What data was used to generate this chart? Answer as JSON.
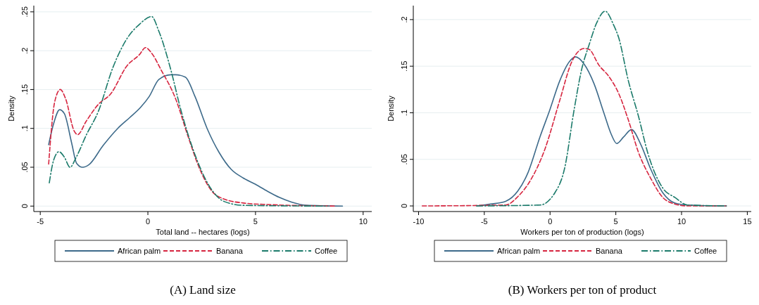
{
  "chart_data": [
    {
      "type": "line",
      "title": "(A) Land size",
      "xlabel": "Total land -- hectares (logs)",
      "ylabel": "Density",
      "xlim": [
        -5.3,
        10.4
      ],
      "ylim": [
        -0.007,
        0.258
      ],
      "xticks": [
        -5,
        0,
        5,
        10
      ],
      "yticks": [
        {
          "value": 0,
          "label": "0"
        },
        {
          "value": 0.05,
          "label": ".05"
        },
        {
          "value": 0.1,
          "label": ".1"
        },
        {
          "value": 0.15,
          "label": ".15"
        },
        {
          "value": 0.2,
          "label": ".2"
        },
        {
          "value": 0.25,
          "label": ".25"
        }
      ],
      "grid": "y",
      "legend": "bottom",
      "series": [
        {
          "name": "African palm",
          "color": "#3d6a8a",
          "line_style": "solid",
          "x": [
            -4.61,
            -4.38,
            -4.1,
            -3.88,
            -3.54,
            -3.31,
            -3.03,
            -2.75,
            -2.08,
            -1.4,
            -0.84,
            -0.34,
            0.06,
            0.51,
            1.07,
            1.29,
            1.74,
            2.19,
            2.75,
            3.31,
            3.88,
            4.44,
            5.0,
            5.56,
            6.12,
            6.69,
            7.36,
            9.04
          ],
          "values": [
            0.079,
            0.106,
            0.124,
            0.119,
            0.081,
            0.055,
            0.05,
            0.053,
            0.078,
            0.1,
            0.114,
            0.127,
            0.141,
            0.163,
            0.169,
            0.169,
            0.166,
            0.141,
            0.1,
            0.069,
            0.047,
            0.036,
            0.028,
            0.019,
            0.011,
            0.005,
            0.001,
            0
          ]
        },
        {
          "name": "Banana",
          "color": "#d6253f",
          "line_style": "dashed",
          "x": [
            -4.61,
            -4.33,
            -4.07,
            -3.82,
            -3.43,
            -3.26,
            -2.87,
            -2.3,
            -1.74,
            -0.96,
            -0.39,
            -0.11,
            0.17,
            0.62,
            1.29,
            1.85,
            2.42,
            2.98,
            3.54,
            4.44,
            5.56,
            8.71
          ],
          "values": [
            0.054,
            0.134,
            0.15,
            0.138,
            0.097,
            0.092,
            0.109,
            0.131,
            0.144,
            0.181,
            0.195,
            0.204,
            0.197,
            0.175,
            0.138,
            0.091,
            0.047,
            0.019,
            0.009,
            0.004,
            0.002,
            0
          ]
        },
        {
          "name": "Coffee",
          "color": "#1a7a6a",
          "line_style": "dotted",
          "x": [
            -4.58,
            -4.38,
            -4.13,
            -3.88,
            -3.62,
            -3.31,
            -2.87,
            -2.3,
            -1.63,
            -0.96,
            -0.39,
            0.17,
            0.51,
            1.07,
            1.52,
            2.19,
            2.87,
            3.54,
            4.44,
            8.37
          ],
          "values": [
            0.03,
            0.059,
            0.07,
            0.063,
            0.05,
            0.064,
            0.091,
            0.122,
            0.178,
            0.216,
            0.234,
            0.244,
            0.225,
            0.175,
            0.125,
            0.066,
            0.025,
            0.006,
            0.001,
            0
          ]
        }
      ]
    },
    {
      "type": "line",
      "title": "(B) Workers per ton of product",
      "xlabel": "Workers per ton of production (logs)",
      "ylabel": "Density",
      "xlim": [
        -10.4,
        15.3
      ],
      "ylim": [
        -0.006,
        0.215
      ],
      "xticks": [
        -10,
        -5,
        0,
        5,
        10,
        15
      ],
      "yticks": [
        {
          "value": 0,
          "label": "0"
        },
        {
          "value": 0.05,
          "label": ".05"
        },
        {
          "value": 0.1,
          "label": ".1"
        },
        {
          "value": 0.15,
          "label": ".15"
        },
        {
          "value": 0.2,
          "label": ".2"
        }
      ],
      "grid": "y",
      "legend": "bottom",
      "series": [
        {
          "name": "African palm",
          "color": "#3d6a8a",
          "line_style": "solid",
          "x": [
            -5.55,
            -4.52,
            -3.38,
            -2.45,
            -1.7,
            -0.77,
            -0.02,
            0.73,
            1.48,
            1.94,
            2.6,
            3.35,
            4.09,
            4.65,
            5.07,
            5.59,
            6.19,
            6.9,
            7.64,
            8.58,
            9.51,
            10.45,
            13.4
          ],
          "values": [
            0,
            0.002,
            0.005,
            0.016,
            0.035,
            0.074,
            0.103,
            0.134,
            0.155,
            0.16,
            0.152,
            0.131,
            0.1,
            0.077,
            0.067,
            0.074,
            0.082,
            0.066,
            0.04,
            0.014,
            0.003,
            0.001,
            0
          ]
        },
        {
          "name": "Banana",
          "color": "#d6253f",
          "line_style": "dashed",
          "x": [
            -9.72,
            -3.38,
            -2.45,
            -1.51,
            -0.39,
            0.73,
            1.66,
            2.6,
            2.97,
            3.72,
            4.47,
            5.21,
            5.96,
            6.71,
            7.64,
            8.58,
            9.51,
            10.45,
            13.4
          ],
          "values": [
            0,
            0.001,
            0.01,
            0.027,
            0.061,
            0.113,
            0.155,
            0.169,
            0.168,
            0.151,
            0.139,
            0.121,
            0.092,
            0.058,
            0.03,
            0.009,
            0.002,
            0,
            0
          ]
        },
        {
          "name": "Coffee",
          "color": "#1a7a6a",
          "line_style": "dotted",
          "x": [
            -5.6,
            -0.77,
            0.36,
            1.1,
            1.85,
            2.41,
            2.97,
            3.53,
            4.19,
            4.84,
            5.21,
            5.96,
            6.71,
            7.45,
            8.58,
            9.51,
            10.45,
            13.4
          ],
          "values": [
            0,
            0.001,
            0.014,
            0.04,
            0.105,
            0.147,
            0.173,
            0.196,
            0.209,
            0.194,
            0.181,
            0.134,
            0.097,
            0.056,
            0.019,
            0.009,
            0.001,
            0
          ]
        }
      ]
    }
  ]
}
